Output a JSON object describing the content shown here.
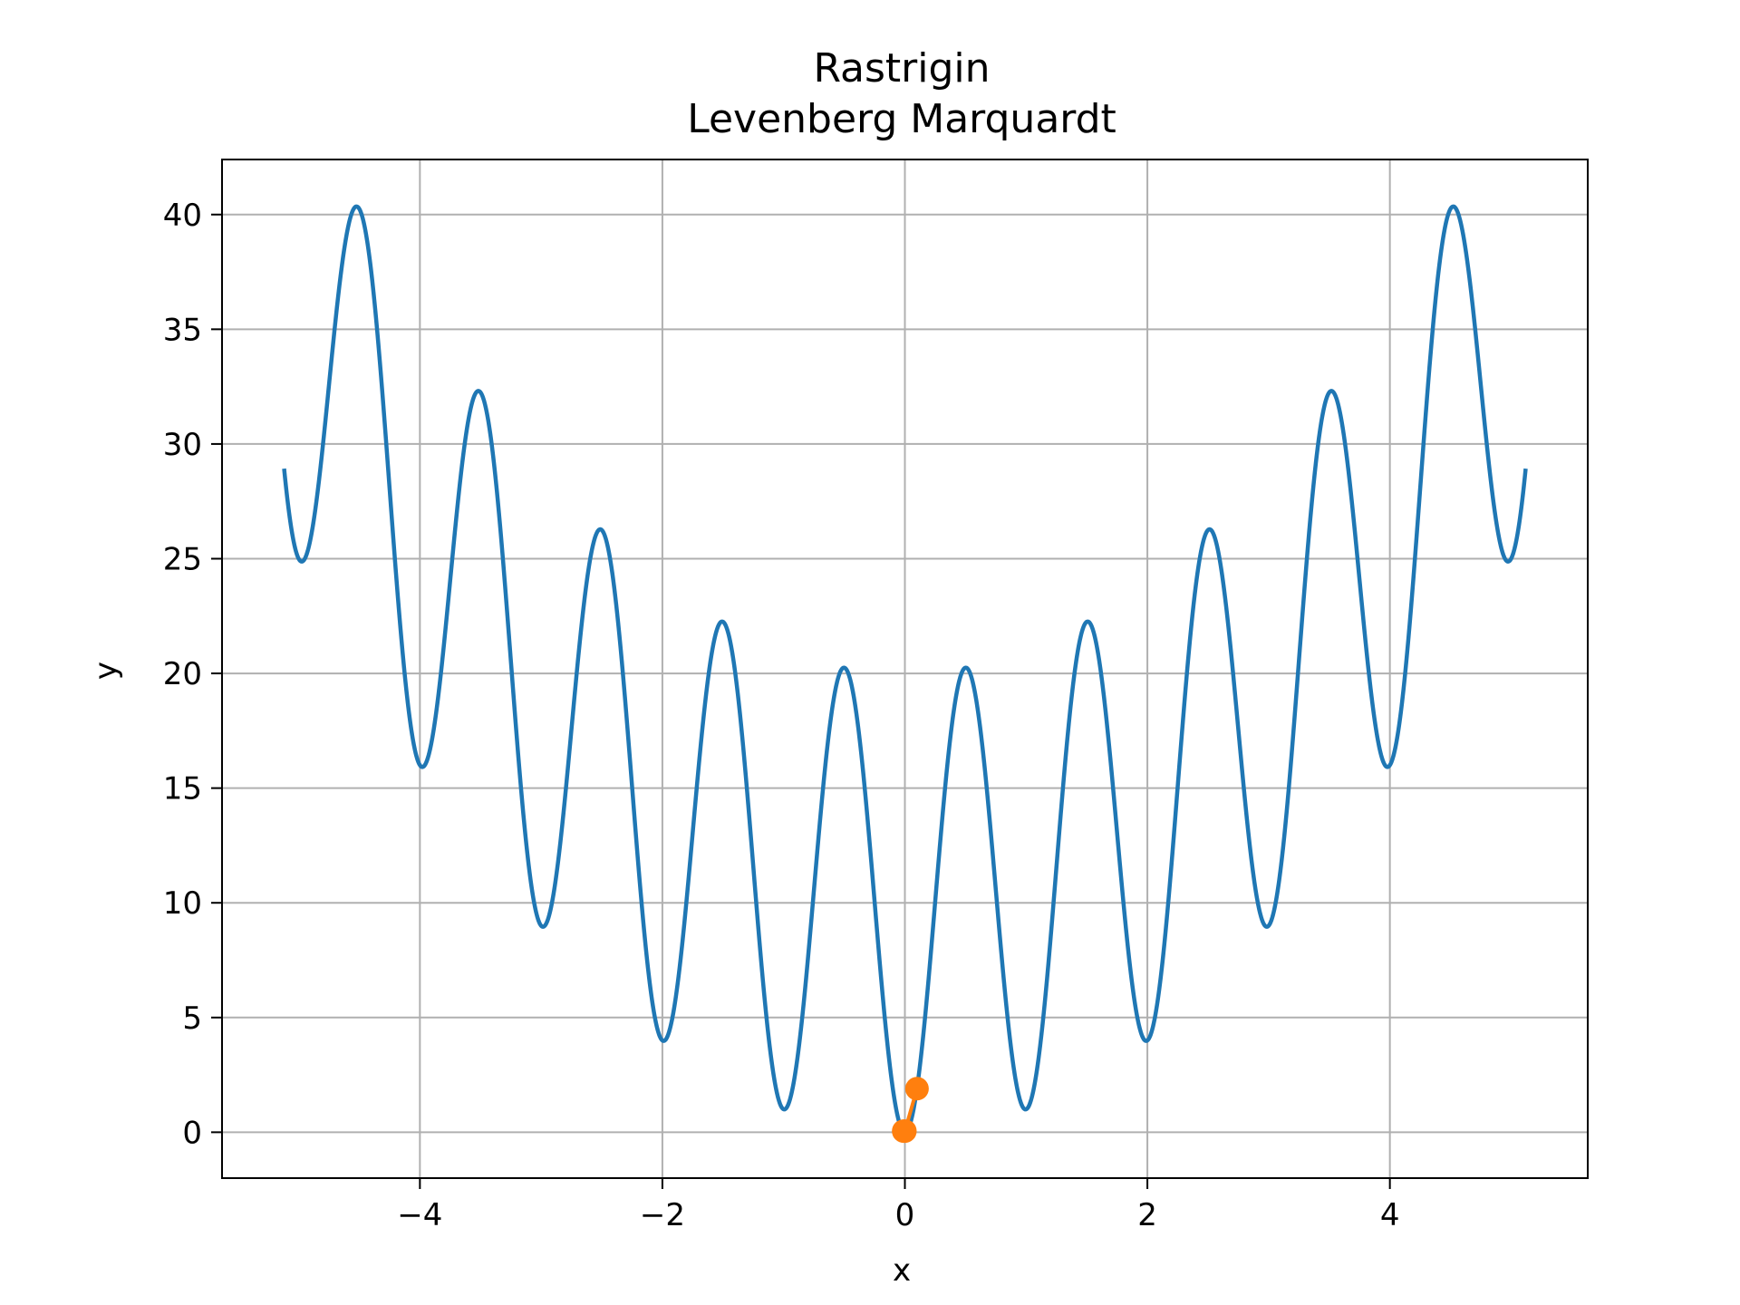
{
  "chart_data": {
    "type": "line",
    "title": "Rastrigin",
    "subtitle": "Levenberg Marquardt",
    "xlabel": "x",
    "ylabel": "y",
    "xlim": [
      -5.632,
      5.632
    ],
    "ylim": [
      -2.0,
      42.4
    ],
    "grid": true,
    "xticks": [
      -4,
      -2,
      0,
      2,
      4
    ],
    "xtick_labels": [
      "−4",
      "−2",
      "0",
      "2",
      "4"
    ],
    "yticks": [
      0,
      5,
      10,
      15,
      20,
      25,
      30,
      35,
      40
    ],
    "ytick_labels": [
      "0",
      "5",
      "10",
      "15",
      "20",
      "25",
      "30",
      "35",
      "40"
    ],
    "series": [
      {
        "kind": "line",
        "color": "#1f77b4",
        "function": "10 + x^2 - 10*cos(2*pi*x)",
        "x_range": [
          -5.12,
          5.12
        ],
        "x": [
          -5.12,
          -5.0,
          -4.52,
          -3.98,
          -3.52,
          -2.98,
          -2.51,
          -1.99,
          -1.51,
          -0.99,
          -0.5,
          0.0,
          0.5,
          0.99,
          1.51,
          1.99,
          2.51,
          2.98,
          3.52,
          3.98,
          4.52,
          5.0,
          5.12
        ],
        "y": [
          28.92,
          25.0,
          40.35,
          15.92,
          32.35,
          8.95,
          26.25,
          3.98,
          22.25,
          0.99,
          20.25,
          0.0,
          20.25,
          0.99,
          22.25,
          3.98,
          26.25,
          8.95,
          32.35,
          15.92,
          40.35,
          25.0,
          28.92
        ]
      },
      {
        "kind": "scatter",
        "color": "#ff7f0e",
        "x": [
          0.1,
          0.0,
          -0.01
        ],
        "y": [
          1.9,
          0.05,
          0.05
        ]
      }
    ]
  }
}
